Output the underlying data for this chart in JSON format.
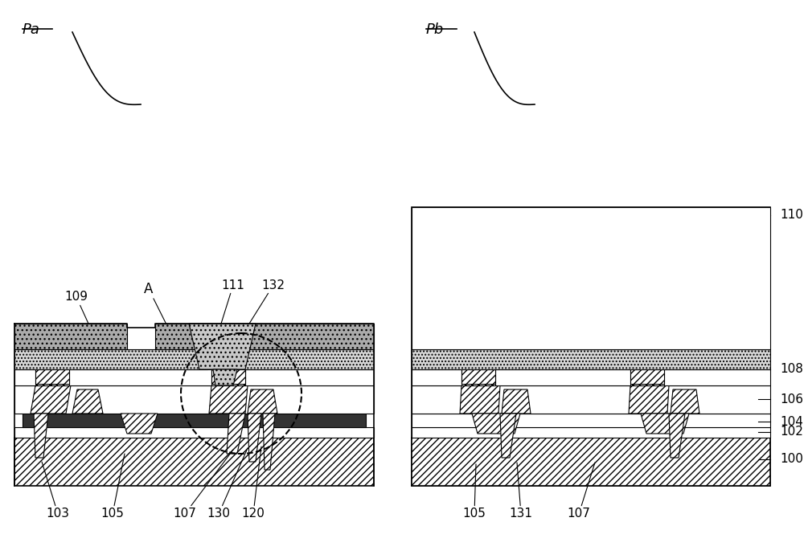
{
  "bg": "#ffffff",
  "lc": "#000000",
  "dark_fill": "#333333",
  "gray_fill": "#aaaaaa",
  "light_gray": "#cccccc",
  "white": "#ffffff",
  "Pa_label": "Pa",
  "Pb_label": "Pb"
}
